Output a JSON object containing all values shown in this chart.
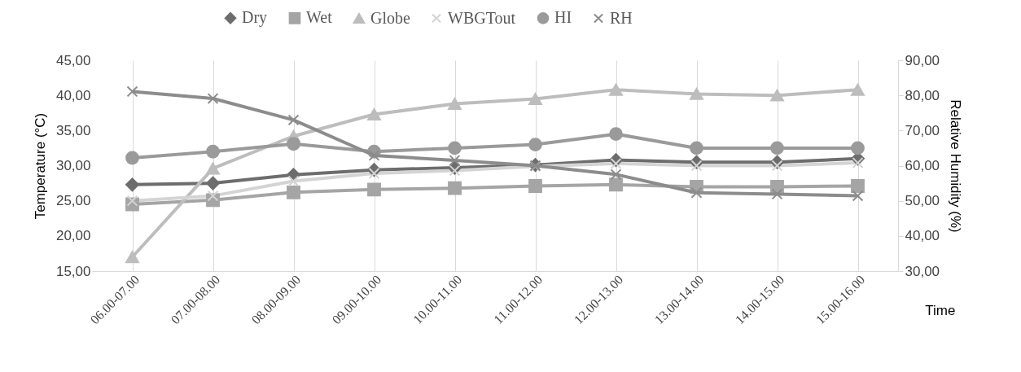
{
  "chart_data": {
    "type": "line",
    "xlabel": "Time",
    "ylabel": "Temperature (°C)",
    "y2label": "Relative Humidity (%)",
    "legend": "top",
    "grid": "x",
    "categories": [
      "06.00-07.00",
      "07.00-08.00",
      "08.00-09.00",
      "09.00-10.00",
      "10.00-11.00",
      "11.00-12.00",
      "12.00-13.00",
      "13.00-14.00",
      "14.00-15.00",
      "15.00-16.00"
    ],
    "ylim": [
      15,
      45
    ],
    "yticks": [
      {
        "value": 15,
        "label": "15,00"
      },
      {
        "value": 20,
        "label": "20,00"
      },
      {
        "value": 25,
        "label": "25,00"
      },
      {
        "value": 30,
        "label": "30,00"
      },
      {
        "value": 35,
        "label": "35,00"
      },
      {
        "value": 40,
        "label": "40,00"
      },
      {
        "value": 45,
        "label": "45,00"
      }
    ],
    "y2lim": [
      30,
      90
    ],
    "y2ticks": [
      {
        "value": 30,
        "label": "30,00"
      },
      {
        "value": 40,
        "label": "40,00"
      },
      {
        "value": 50,
        "label": "50,00"
      },
      {
        "value": 60,
        "label": "60,00"
      },
      {
        "value": 70,
        "label": "70,00"
      },
      {
        "value": 80,
        "label": "80,00"
      },
      {
        "value": 90,
        "label": "90,00"
      }
    ],
    "series": [
      {
        "name": "Dry",
        "color": "#6d6d6d",
        "marker": "diamond",
        "values": [
          27.3,
          27.5,
          28.7,
          29.4,
          29.7,
          30.1,
          30.8,
          30.5,
          30.5,
          31.0
        ]
      },
      {
        "name": "Wet",
        "color": "#a5a5a5",
        "marker": "square",
        "values": [
          24.5,
          25.1,
          26.2,
          26.6,
          26.8,
          27.1,
          27.3,
          27.0,
          27.0,
          27.1
        ]
      },
      {
        "name": "Globe",
        "color": "#bdbdbd",
        "marker": "triangle",
        "values": [
          17.0,
          29.6,
          34.2,
          37.3,
          38.8,
          39.5,
          40.8,
          40.2,
          40.0,
          40.8
        ]
      },
      {
        "name": "WBGTout",
        "color": "#d4d4d4",
        "marker": "cross",
        "values": [
          25.0,
          25.7,
          27.8,
          28.9,
          29.3,
          29.9,
          30.3,
          30.0,
          30.0,
          30.4
        ]
      },
      {
        "name": "HI",
        "color": "#9a9a9a",
        "marker": "circle",
        "values": [
          31.1,
          32.0,
          33.1,
          32.0,
          32.5,
          33.0,
          34.5,
          32.5,
          32.5,
          32.5
        ]
      },
      {
        "name": "RH",
        "color": "#8c8c8c",
        "marker": "cross",
        "axis": "y2",
        "values": [
          81.1,
          79.1,
          73.0,
          62.9,
          61.5,
          60.0,
          57.5,
          52.3,
          51.9,
          51.4
        ]
      }
    ]
  }
}
